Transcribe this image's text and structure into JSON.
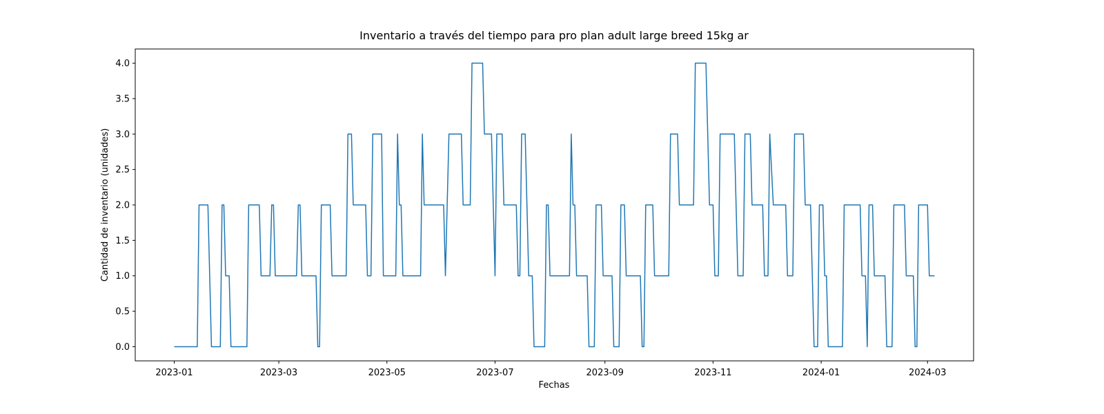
{
  "chart_data": {
    "type": "line",
    "title": "Inventario a través del tiempo para pro plan adult large breed 15kg ar",
    "xlabel": "Fechas",
    "ylabel": "Cantidad de inventario (unidades)",
    "color": "#1f77b4",
    "grid": false,
    "xlim": [
      "2022-12-10",
      "2024-03-27"
    ],
    "xticks": [
      {
        "value": "2023-01-01",
        "label": "2023-01"
      },
      {
        "value": "2023-03-01",
        "label": "2023-03"
      },
      {
        "value": "2023-05-01",
        "label": "2023-05"
      },
      {
        "value": "2023-07-01",
        "label": "2023-07"
      },
      {
        "value": "2023-09-01",
        "label": "2023-09"
      },
      {
        "value": "2023-11-01",
        "label": "2023-11"
      },
      {
        "value": "2024-01-01",
        "label": "2024-01"
      },
      {
        "value": "2024-03-01",
        "label": "2024-03"
      }
    ],
    "ylim": [
      -0.2,
      4.2
    ],
    "yticks": [
      {
        "value": 0,
        "label": "0.0"
      },
      0.5,
      {
        "value": 1,
        "label": "1.0"
      },
      1.5,
      {
        "value": 2,
        "label": "2.0"
      },
      2.5,
      {
        "value": 3,
        "label": "3.0"
      },
      3.5,
      {
        "value": 4,
        "label": "4.0"
      }
    ],
    "x": [
      "2023-01-01",
      "2023-01-14",
      "2023-01-15",
      "2023-01-20",
      "2023-01-22",
      "2023-01-27",
      "2023-01-28",
      "2023-01-29",
      "2023-01-30",
      "2023-02-01",
      "2023-02-02",
      "2023-02-11",
      "2023-02-12",
      "2023-02-18",
      "2023-02-19",
      "2023-02-24",
      "2023-02-25",
      "2023-02-26",
      "2023-02-27",
      "2023-03-11",
      "2023-03-12",
      "2023-03-13",
      "2023-03-14",
      "2023-03-22",
      "2023-03-23",
      "2023-03-24",
      "2023-03-25",
      "2023-03-30",
      "2023-03-31",
      "2023-04-08",
      "2023-04-09",
      "2023-04-11",
      "2023-04-12",
      "2023-04-19",
      "2023-04-20",
      "2023-04-22",
      "2023-04-23",
      "2023-04-28",
      "2023-04-29",
      "2023-05-06",
      "2023-05-07",
      "2023-05-08",
      "2023-05-09",
      "2023-05-10",
      "2023-05-20",
      "2023-05-21",
      "2023-05-22",
      "2023-06-02",
      "2023-06-03",
      "2023-06-05",
      "2023-06-12",
      "2023-06-13",
      "2023-06-17",
      "2023-06-18",
      "2023-06-24",
      "2023-06-25",
      "2023-06-29",
      "2023-07-01",
      "2023-07-02",
      "2023-07-05",
      "2023-07-06",
      "2023-07-13",
      "2023-07-14",
      "2023-07-15",
      "2023-07-16",
      "2023-07-18",
      "2023-07-20",
      "2023-07-22",
      "2023-07-23",
      "2023-07-29",
      "2023-07-30",
      "2023-07-31",
      "2023-08-01",
      "2023-08-12",
      "2023-08-13",
      "2023-08-14",
      "2023-08-15",
      "2023-08-16",
      "2023-08-22",
      "2023-08-23",
      "2023-08-26",
      "2023-08-27",
      "2023-08-30",
      "2023-08-31",
      "2023-09-05",
      "2023-09-06",
      "2023-09-09",
      "2023-09-10",
      "2023-09-12",
      "2023-09-13",
      "2023-09-21",
      "2023-09-22",
      "2023-09-23",
      "2023-09-24",
      "2023-09-28",
      "2023-09-29",
      "2023-10-07",
      "2023-10-08",
      "2023-10-12",
      "2023-10-13",
      "2023-10-21",
      "2023-10-22",
      "2023-10-28",
      "2023-10-30",
      "2023-11-01",
      "2023-11-02",
      "2023-11-04",
      "2023-11-05",
      "2023-11-13",
      "2023-11-15",
      "2023-11-18",
      "2023-11-19",
      "2023-11-22",
      "2023-11-23",
      "2023-11-29",
      "2023-11-30",
      "2023-12-02",
      "2023-12-03",
      "2023-12-05",
      "2023-12-12",
      "2023-12-13",
      "2023-12-16",
      "2023-12-17",
      "2023-12-22",
      "2023-12-23",
      "2023-12-26",
      "2023-12-28",
      "2023-12-30",
      "2023-12-31",
      "2024-01-02",
      "2024-01-03",
      "2024-01-04",
      "2024-01-05",
      "2024-01-13",
      "2024-01-14",
      "2024-01-23",
      "2024-01-24",
      "2024-01-26",
      "2024-01-27",
      "2024-01-28",
      "2024-01-30",
      "2024-01-31",
      "2024-02-06",
      "2024-02-07",
      "2024-02-10",
      "2024-02-11",
      "2024-02-17",
      "2024-02-18",
      "2024-02-22",
      "2024-02-23",
      "2024-02-24",
      "2024-02-25",
      "2024-03-01",
      "2024-03-02",
      "2024-03-05"
    ],
    "values": [
      0,
      0,
      2,
      2,
      0,
      0,
      2,
      2,
      1,
      1,
      0,
      0,
      2,
      2,
      1,
      1,
      2,
      2,
      1,
      1,
      2,
      2,
      1,
      1,
      0,
      0,
      2,
      2,
      1,
      1,
      3,
      3,
      2,
      2,
      1,
      1,
      3,
      3,
      1,
      1,
      3,
      2,
      2,
      1,
      1,
      3,
      2,
      2,
      1,
      3,
      3,
      2,
      2,
      4,
      4,
      3,
      3,
      1,
      3,
      3,
      2,
      2,
      1,
      1,
      3,
      3,
      1,
      1,
      0,
      0,
      2,
      2,
      1,
      1,
      3,
      2,
      2,
      1,
      1,
      0,
      0,
      2,
      2,
      1,
      1,
      0,
      0,
      2,
      2,
      1,
      1,
      0,
      0,
      2,
      2,
      1,
      1,
      3,
      3,
      2,
      2,
      4,
      4,
      2,
      2,
      1,
      1,
      3,
      3,
      1,
      1,
      3,
      3,
      2,
      2,
      1,
      1,
      3,
      2,
      2,
      1,
      1,
      3,
      3,
      2,
      2,
      0,
      0,
      2,
      2,
      1,
      1,
      0,
      0,
      2,
      2,
      1,
      1,
      0,
      2,
      2,
      1,
      1,
      0,
      0,
      2,
      2,
      1,
      1,
      0,
      0,
      2,
      2,
      1,
      1
    ]
  }
}
